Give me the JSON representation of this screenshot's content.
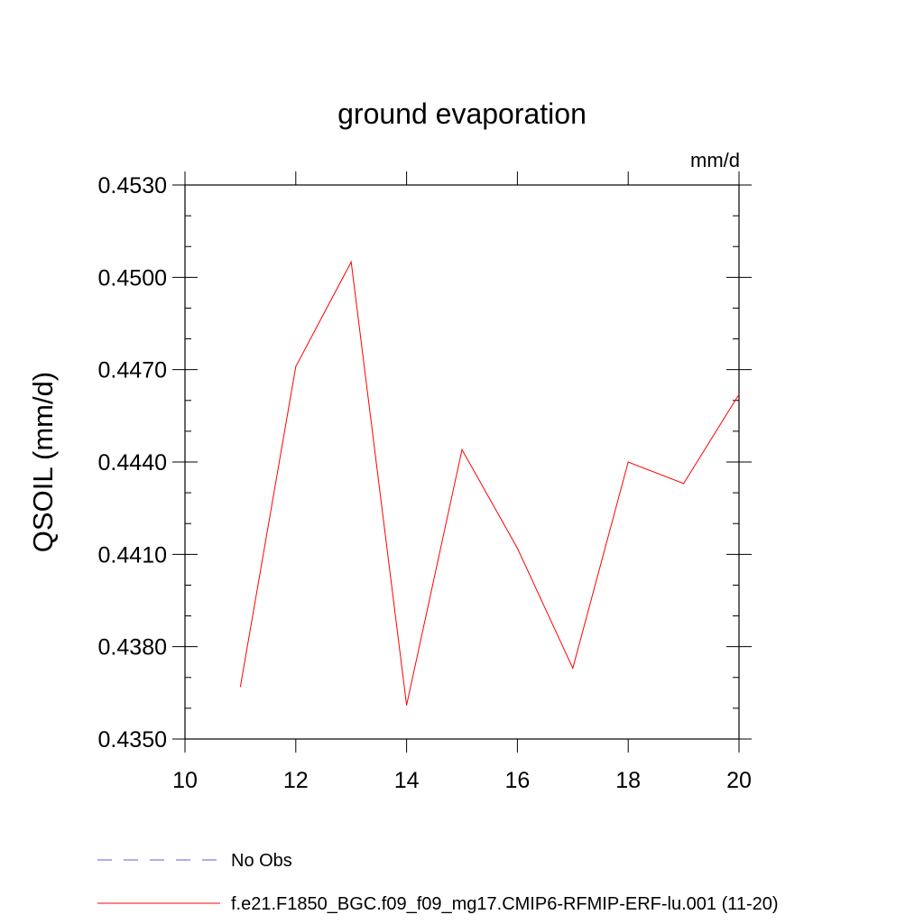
{
  "chart_data": {
    "type": "line",
    "title": "ground evaporation",
    "units_label": "mm/d",
    "ylabel": "QSOIL  (mm/d)",
    "xlabel": "",
    "xlim": [
      10,
      20
    ],
    "ylim": [
      0.435,
      0.453
    ],
    "x_ticks": [
      "10",
      "12",
      "14",
      "16",
      "18",
      "20"
    ],
    "y_ticks": [
      "0.4350",
      "0.4380",
      "0.4410",
      "0.4440",
      "0.4470",
      "0.4500",
      "0.4530"
    ],
    "grid": false,
    "legend_position": "bottom",
    "series": [
      {
        "name": "f.e21.F1850_BGC.f09_f09_mg17.CMIP6-RFMIP-ERF-lu.001 (11-20)",
        "color": "#ff0000",
        "style": "solid",
        "x": [
          11,
          12,
          13,
          14,
          15,
          16,
          17,
          18,
          19,
          20
        ],
        "y": [
          0.4367,
          0.4471,
          0.4505,
          0.4361,
          0.4444,
          0.4412,
          0.4373,
          0.444,
          0.4433,
          0.4462
        ]
      },
      {
        "name": "No Obs",
        "color": "#6a5acd",
        "style": "dashed",
        "x": [],
        "y": []
      }
    ]
  }
}
